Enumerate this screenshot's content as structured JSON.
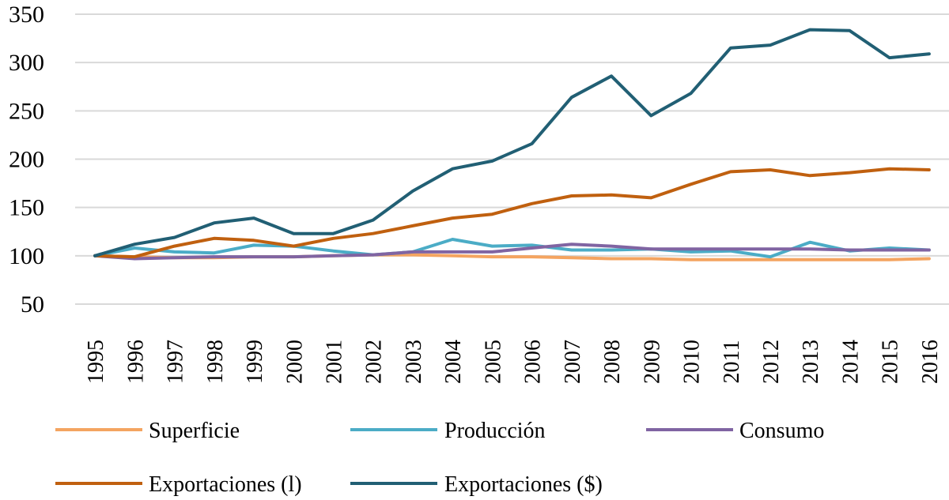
{
  "chart_data": {
    "type": "line",
    "title": "",
    "xlabel": "",
    "ylabel": "",
    "x": [
      "1995",
      "1996",
      "1997",
      "1998",
      "1999",
      "2000",
      "2001",
      "2002",
      "2003",
      "2004",
      "2005",
      "2006",
      "2007",
      "2008",
      "2009",
      "2010",
      "2011",
      "2012",
      "2013",
      "2014",
      "2015",
      "2016"
    ],
    "ylim": [
      50,
      350
    ],
    "yticks": [
      350,
      300,
      250,
      200,
      150,
      100,
      50
    ],
    "grid": true,
    "legend_position": "bottom",
    "series": [
      {
        "name": "Superficie",
        "color": "#f4a460",
        "values": [
          100,
          99,
          98,
          98,
          99,
          99,
          100,
          101,
          101,
          100,
          99,
          99,
          98,
          97,
          97,
          96,
          96,
          96,
          96,
          96,
          96,
          97
        ]
      },
      {
        "name": "Producción",
        "color": "#4bacc6",
        "values": [
          100,
          108,
          104,
          103,
          111,
          110,
          105,
          101,
          104,
          117,
          110,
          111,
          106,
          106,
          107,
          104,
          105,
          99,
          114,
          105,
          108,
          106
        ]
      },
      {
        "name": "Consumo",
        "color": "#8064a2",
        "values": [
          100,
          97,
          98,
          99,
          99,
          99,
          100,
          101,
          104,
          104,
          104,
          108,
          112,
          110,
          107,
          107,
          107,
          107,
          107,
          106,
          106,
          106
        ]
      },
      {
        "name": "Exportaciones (l)",
        "color": "#c0600f",
        "values": [
          100,
          99,
          110,
          118,
          116,
          110,
          118,
          123,
          131,
          139,
          143,
          154,
          162,
          163,
          160,
          174,
          187,
          189,
          183,
          186,
          190,
          189
        ]
      },
      {
        "name": "Exportaciones ($)",
        "color": "#215f74",
        "values": [
          100,
          112,
          119,
          134,
          139,
          123,
          123,
          137,
          167,
          190,
          198,
          216,
          264,
          286,
          245,
          268,
          315,
          318,
          334,
          333,
          305,
          309
        ]
      }
    ]
  }
}
